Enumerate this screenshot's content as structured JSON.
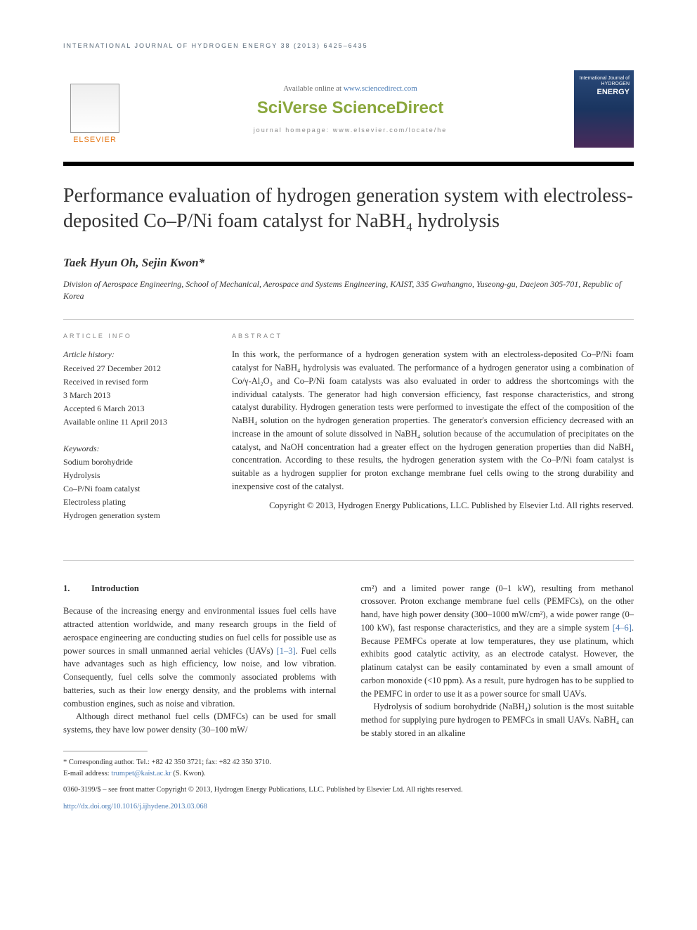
{
  "journal_header": "INTERNATIONAL JOURNAL OF HYDROGEN ENERGY 38 (2013) 6425–6435",
  "banner": {
    "elsevier": "ELSEVIER",
    "available_prefix": "Available online at ",
    "available_link": "www.sciencedirect.com",
    "sciverse": "SciVerse ScienceDirect",
    "homepage_prefix": "journal homepage: ",
    "homepage_link": "www.elsevier.com/locate/he",
    "cover_line1": "International Journal of",
    "cover_line2": "HYDROGEN",
    "cover_line3": "ENERGY"
  },
  "title": "Performance evaluation of hydrogen generation system with electroless-deposited Co–P/Ni foam catalyst for NaBH₄ hydrolysis",
  "authors": "Taek Hyun Oh, Sejin Kwon*",
  "affiliation": "Division of Aerospace Engineering, School of Mechanical, Aerospace and Systems Engineering, KAIST, 335 Gwahangno, Yuseong-gu, Daejeon 305-701, Republic of Korea",
  "article_info": {
    "heading": "ARTICLE INFO",
    "history_label": "Article history:",
    "received": "Received 27 December 2012",
    "revised_l1": "Received in revised form",
    "revised_l2": "3 March 2013",
    "accepted": "Accepted 6 March 2013",
    "online": "Available online 11 April 2013",
    "keywords_label": "Keywords:",
    "kw1": "Sodium borohydride",
    "kw2": "Hydrolysis",
    "kw3": "Co–P/Ni foam catalyst",
    "kw4": "Electroless plating",
    "kw5": "Hydrogen generation system"
  },
  "abstract": {
    "heading": "ABSTRACT",
    "text": "In this work, the performance of a hydrogen generation system with an electroless-deposited Co–P/Ni foam catalyst for NaBH₄ hydrolysis was evaluated. The performance of a hydrogen generator using a combination of Co/γ-Al₂O₃ and Co–P/Ni foam catalysts was also evaluated in order to address the shortcomings with the individual catalysts. The generator had high conversion efficiency, fast response characteristics, and strong catalyst durability. Hydrogen generation tests were performed to investigate the effect of the composition of the NaBH₄ solution on the hydrogen generation properties. The generator's conversion efficiency decreased with an increase in the amount of solute dissolved in NaBH₄ solution because of the accumulation of precipitates on the catalyst, and NaOH concentration had a greater effect on the hydrogen generation properties than did NaBH₄ concentration. According to these results, the hydrogen generation system with the Co–P/Ni foam catalyst is suitable as a hydrogen supplier for proton exchange membrane fuel cells owing to the strong durability and inexpensive cost of the catalyst.",
    "copyright": "Copyright © 2013, Hydrogen Energy Publications, LLC. Published by Elsevier Ltd. All rights reserved."
  },
  "body": {
    "section_num": "1.",
    "section_title": "Introduction",
    "left_p1": "Because of the increasing energy and environmental issues fuel cells have attracted attention worldwide, and many research groups in the field of aerospace engineering are conducting studies on fuel cells for possible use as power sources in small unmanned aerial vehicles (UAVs) [1–3]. Fuel cells have advantages such as high efficiency, low noise, and low vibration. Consequently, fuel cells solve the commonly associated problems with batteries, such as their low energy density, and the problems with internal combustion engines, such as noise and vibration.",
    "left_p2": "Although direct methanol fuel cells (DMFCs) can be used for small systems, they have low power density (30–100 mW/",
    "right_p1": "cm²) and a limited power range (0–1 kW), resulting from methanol crossover. Proton exchange membrane fuel cells (PEMFCs), on the other hand, have high power density (300–1000 mW/cm²), a wide power range (0–100 kW), fast response characteristics, and they are a simple system [4–6]. Because PEMFCs operate at low temperatures, they use platinum, which exhibits good catalytic activity, as an electrode catalyst. However, the platinum catalyst can be easily contaminated by even a small amount of carbon monoxide (<10 ppm). As a result, pure hydrogen has to be supplied to the PEMFC in order to use it as a power source for small UAVs.",
    "right_p2": "Hydrolysis of sodium borohydride (NaBH₄) solution is the most suitable method for supplying pure hydrogen to PEMFCs in small UAVs. NaBH₄ can be stably stored in an alkaline"
  },
  "footer": {
    "corresponding": "* Corresponding author. Tel.: +82 42 350 3721; fax: +82 42 350 3710.",
    "email_label": "E-mail address: ",
    "email": "trumpet@kaist.ac.kr",
    "email_suffix": " (S. Kwon).",
    "issn": "0360-3199/$ – see front matter Copyright © 2013, Hydrogen Energy Publications, LLC. Published by Elsevier Ltd. All rights reserved.",
    "doi": "http://dx.doi.org/10.1016/j.ijhydene.2013.03.068"
  },
  "refs": {
    "r1_3": "[1–3]",
    "r4_6": "[4–6]"
  }
}
